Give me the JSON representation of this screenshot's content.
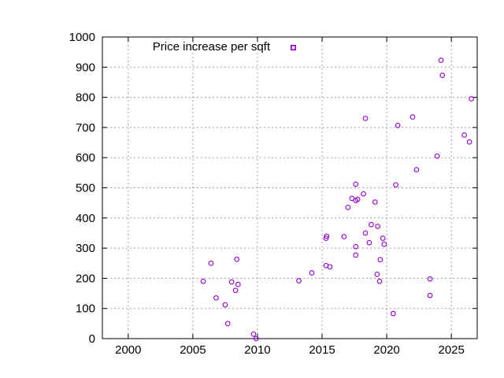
{
  "chart_data": {
    "type": "scatter",
    "title": "",
    "xlabel": "",
    "ylabel": "",
    "xlim": [
      1998,
      2027
    ],
    "ylim": [
      0,
      1000
    ],
    "x_ticks": [
      2000,
      2005,
      2010,
      2015,
      2020,
      2025
    ],
    "y_ticks": [
      0,
      100,
      200,
      300,
      400,
      500,
      600,
      700,
      800,
      900,
      1000
    ],
    "grid": true,
    "legend": {
      "placement": "top-left",
      "marker": "circle"
    },
    "series": [
      {
        "name": "Price increase per sqft",
        "color": "#9400d3",
        "marker": "circle",
        "points": [
          [
            2005.8,
            190
          ],
          [
            2006.4,
            250
          ],
          [
            2006.8,
            135
          ],
          [
            2007.5,
            112
          ],
          [
            2007.7,
            50
          ],
          [
            2008.0,
            188
          ],
          [
            2008.3,
            160
          ],
          [
            2008.4,
            263
          ],
          [
            2008.5,
            180
          ],
          [
            2009.7,
            15
          ],
          [
            2009.9,
            0
          ],
          [
            2013.2,
            192
          ],
          [
            2014.2,
            218
          ],
          [
            2015.3,
            333
          ],
          [
            2015.35,
            340
          ],
          [
            2015.3,
            242
          ],
          [
            2015.6,
            238
          ],
          [
            2016.7,
            338
          ],
          [
            2017.0,
            435
          ],
          [
            2017.3,
            465
          ],
          [
            2017.6,
            305
          ],
          [
            2017.6,
            277
          ],
          [
            2017.6,
            512
          ],
          [
            2017.6,
            458
          ],
          [
            2017.75,
            462
          ],
          [
            2018.2,
            480
          ],
          [
            2018.35,
            350
          ],
          [
            2018.35,
            730
          ],
          [
            2018.65,
            318
          ],
          [
            2018.8,
            378
          ],
          [
            2019.1,
            453
          ],
          [
            2019.25,
            213
          ],
          [
            2019.3,
            372
          ],
          [
            2019.45,
            190
          ],
          [
            2019.5,
            262
          ],
          [
            2019.7,
            333
          ],
          [
            2019.8,
            313
          ],
          [
            2020.5,
            83
          ],
          [
            2020.7,
            510
          ],
          [
            2020.85,
            707
          ],
          [
            2022.0,
            735
          ],
          [
            2022.3,
            560
          ],
          [
            2023.35,
            198
          ],
          [
            2023.35,
            143
          ],
          [
            2023.9,
            605
          ],
          [
            2024.2,
            923
          ],
          [
            2024.3,
            873
          ],
          [
            2026.0,
            675
          ],
          [
            2026.4,
            652
          ],
          [
            2026.55,
            795
          ]
        ]
      }
    ]
  }
}
